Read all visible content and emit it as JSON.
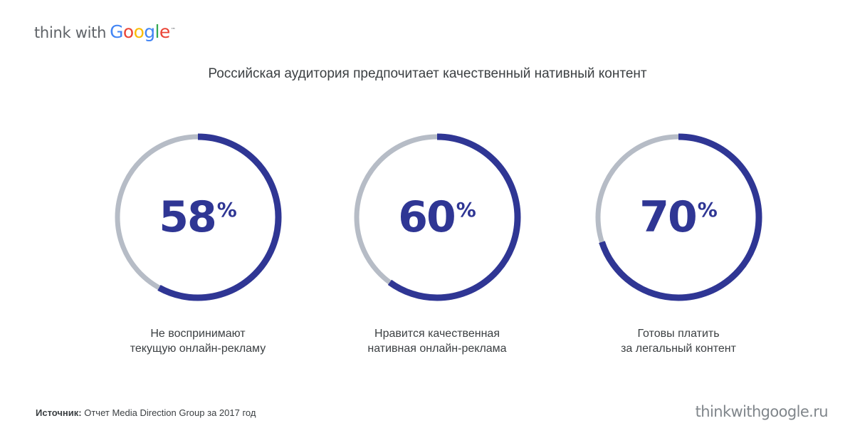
{
  "logo": {
    "lead": "think with",
    "brand_letters": [
      {
        "char": "G",
        "color": "#4285F4"
      },
      {
        "char": "o",
        "color": "#EA4335"
      },
      {
        "char": "o",
        "color": "#FBBC05"
      },
      {
        "char": "g",
        "color": "#4285F4"
      },
      {
        "char": "l",
        "color": "#34A853"
      },
      {
        "char": "e",
        "color": "#EA4335"
      }
    ],
    "tm": "™"
  },
  "title": "Российская аудитория предпочитает качественный нативный контент",
  "colors": {
    "accent": "#2f3694",
    "track": "#b6bcc6",
    "text": "#3c4043",
    "muted": "#80868b"
  },
  "chart_data": {
    "type": "pie",
    "title": "Российская аудитория предпочитает качественный нативный контент",
    "items": [
      {
        "value": 58,
        "label": "58",
        "unit": "%",
        "caption_lines": [
          "Не воспринимают",
          "текущую онлайн-рекламу"
        ]
      },
      {
        "value": 60,
        "label": "60",
        "unit": "%",
        "caption_lines": [
          "Нравится качественная",
          "нативная онлайн-реклама"
        ]
      },
      {
        "value": 70,
        "label": "70",
        "unit": "%",
        "caption_lines": [
          "Готовы платить",
          "за легальный контент"
        ]
      }
    ]
  },
  "footer": {
    "source_label": "Источник:",
    "source_text": " Отчет Media Direction Group за 2017 год",
    "site": "thinkwithgoogle.ru"
  }
}
